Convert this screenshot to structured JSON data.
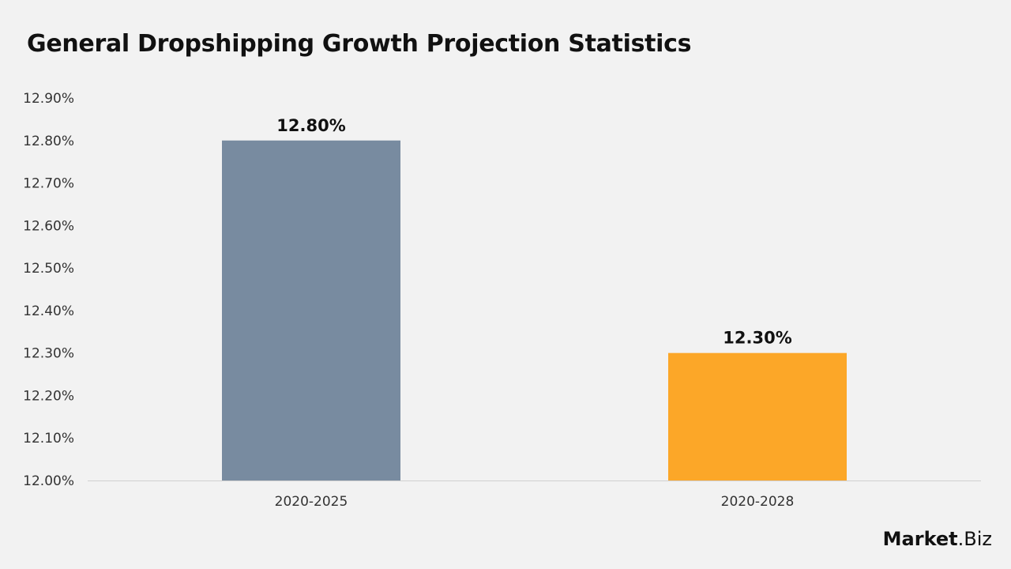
{
  "chart_data": {
    "type": "bar",
    "title": "General Dropshipping Growth Projection Statistics",
    "categories": [
      "2020-2025",
      "2020-2028"
    ],
    "values": [
      12.8,
      12.3
    ],
    "data_labels": [
      "12.80%",
      "12.30%"
    ],
    "colors": [
      "#788ba0",
      "#fca728"
    ],
    "ylim": [
      12.0,
      12.9
    ],
    "yticks": [
      "12.00%",
      "12.10%",
      "12.20%",
      "12.30%",
      "12.40%",
      "12.50%",
      "12.60%",
      "12.70%",
      "12.80%",
      "12.90%"
    ],
    "xlabel": "",
    "ylabel": "",
    "grid": false
  },
  "logo": {
    "bold": "Market",
    "rest": ".Biz"
  }
}
